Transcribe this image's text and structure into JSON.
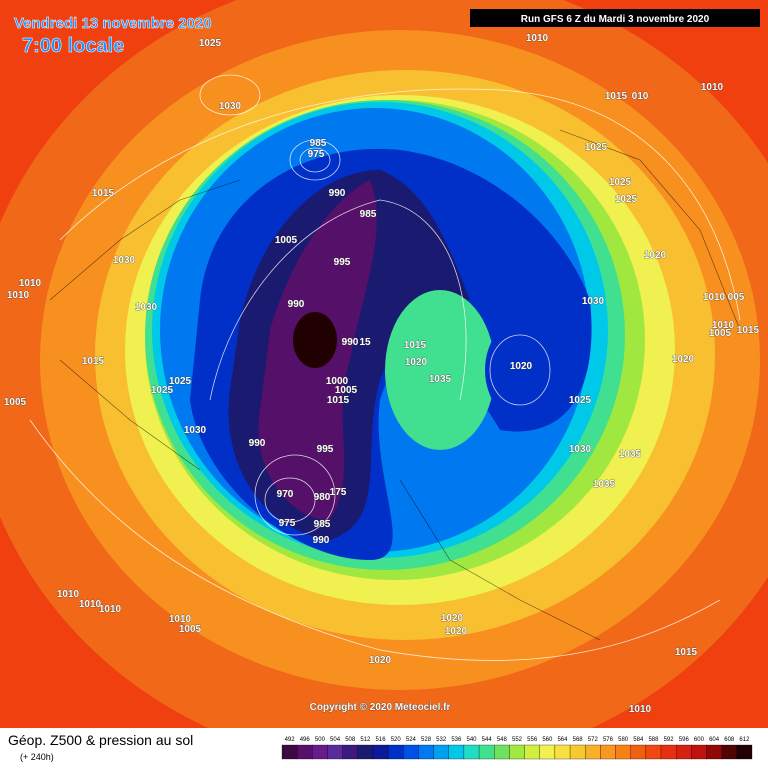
{
  "header": {
    "date": "Vendredi 13 novembre 2020",
    "time": "7:00 locale",
    "run": "Run GFS 6 Z du Mardi 3 novembre 2020"
  },
  "copyright": "Copyright © 2020 Meteociel.fr",
  "footer": {
    "title": "Géop. Z500 & pression au sol",
    "lead": "(+ 240h)"
  },
  "scale": {
    "values": [
      492,
      496,
      500,
      504,
      508,
      512,
      516,
      520,
      524,
      528,
      532,
      536,
      540,
      544,
      548,
      552,
      556,
      560,
      564,
      568,
      572,
      576,
      580,
      584,
      588,
      592,
      596,
      600,
      604,
      608,
      612
    ],
    "colors": [
      "#3c0a40",
      "#55106a",
      "#6a1a8a",
      "#5a2a9a",
      "#3a1a80",
      "#1a1a70",
      "#0a1a9a",
      "#0030c8",
      "#0050e6",
      "#0078f0",
      "#00a0f0",
      "#00c8e8",
      "#20dcc0",
      "#40e090",
      "#70e060",
      "#a0e840",
      "#d0f040",
      "#f0f050",
      "#f8e040",
      "#f8c830",
      "#f8b028",
      "#f89820",
      "#f88018",
      "#f06010",
      "#f04810",
      "#e83010",
      "#d82010",
      "#c01010",
      "#900808",
      "#500404",
      "#200000"
    ]
  },
  "map_labels": [
    "1025",
    "1030",
    "1010",
    "1015",
    "010",
    "1010",
    "985",
    "975",
    "990",
    "985",
    "1025",
    "1025",
    "1025",
    "1015",
    "1005",
    "995",
    "1020",
    "1030",
    "1010",
    "1010",
    "1030",
    "990",
    "1030",
    "1010",
    "005",
    "1010",
    "1005",
    "1015",
    "990",
    "15",
    "1015",
    "1020",
    "1020",
    "1015",
    "1035",
    "1020",
    "1000",
    "1025",
    "1025",
    "1005",
    "1015",
    "1025",
    "1005",
    "1030",
    "990",
    "995",
    "1030",
    "1035",
    "970",
    "980",
    "175",
    "1035",
    "975",
    "985",
    "990",
    "1010",
    "1010",
    "1010",
    "1010",
    "1005",
    "1020",
    "1020",
    "1020",
    "1015",
    "1010"
  ]
}
